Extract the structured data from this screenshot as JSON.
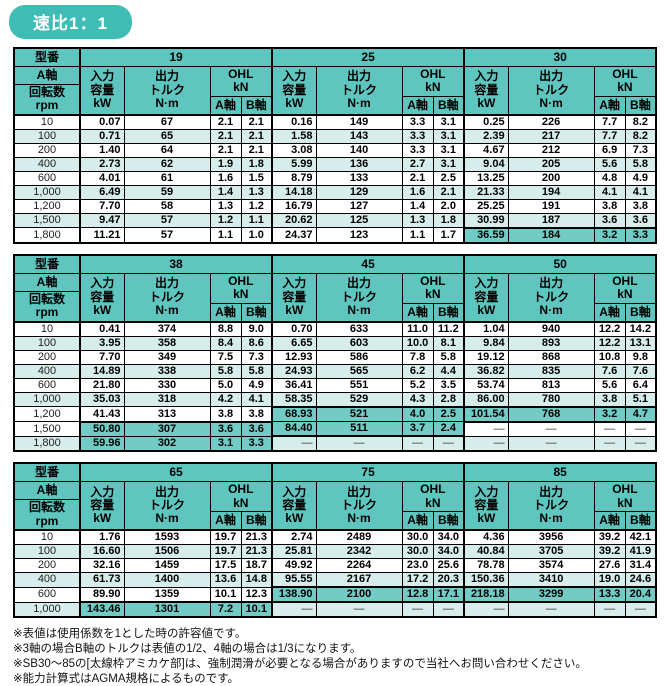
{
  "page_title": "速比1：1",
  "dash": "—",
  "colors": {
    "title_bg": "#3fbdb4",
    "header_teal": "#5ec6bf",
    "row_tint": "#d7edeb",
    "highlight_teal": "#72cbc4",
    "border": "#000000"
  },
  "header": {
    "model_label": "型番",
    "a_axis": "A軸",
    "b_axis": "B軸",
    "rpm_lines": [
      "回転数",
      "rpm"
    ],
    "input_lines": [
      "入力",
      "容量",
      "kW"
    ],
    "output_lines": [
      "出力",
      "トルク",
      "N·m"
    ],
    "ohl_lines": [
      "OHL",
      "kN"
    ]
  },
  "tables": [
    {
      "models": [
        "19",
        "25",
        "30"
      ],
      "rows": [
        {
          "rpm": "10",
          "tint": false,
          "hl": [
            false,
            false,
            false
          ],
          "cells": [
            [
              "0.07",
              "67",
              "2.1",
              "2.1"
            ],
            [
              "0.16",
              "149",
              "3.3",
              "3.1"
            ],
            [
              "0.25",
              "226",
              "7.7",
              "8.2"
            ]
          ]
        },
        {
          "rpm": "100",
          "tint": true,
          "hl": [
            false,
            false,
            false
          ],
          "cells": [
            [
              "0.71",
              "65",
              "2.1",
              "2.1"
            ],
            [
              "1.58",
              "143",
              "3.3",
              "3.1"
            ],
            [
              "2.39",
              "217",
              "7.7",
              "8.2"
            ]
          ]
        },
        {
          "rpm": "200",
          "tint": false,
          "hl": [
            false,
            false,
            false
          ],
          "cells": [
            [
              "1.40",
              "64",
              "2.1",
              "2.1"
            ],
            [
              "3.08",
              "140",
              "3.3",
              "3.1"
            ],
            [
              "4.67",
              "212",
              "6.9",
              "7.3"
            ]
          ]
        },
        {
          "rpm": "400",
          "tint": true,
          "hl": [
            false,
            false,
            false
          ],
          "cells": [
            [
              "2.73",
              "62",
              "1.9",
              "1.8"
            ],
            [
              "5.99",
              "136",
              "2.7",
              "3.1"
            ],
            [
              "9.04",
              "205",
              "5.6",
              "5.8"
            ]
          ]
        },
        {
          "rpm": "600",
          "tint": false,
          "hl": [
            false,
            false,
            false
          ],
          "cells": [
            [
              "4.01",
              "61",
              "1.6",
              "1.5"
            ],
            [
              "8.79",
              "133",
              "2.1",
              "2.5"
            ],
            [
              "13.25",
              "200",
              "4.8",
              "4.9"
            ]
          ]
        },
        {
          "rpm": "1,000",
          "tint": true,
          "hl": [
            false,
            false,
            false
          ],
          "cells": [
            [
              "6.49",
              "59",
              "1.4",
              "1.3"
            ],
            [
              "14.18",
              "129",
              "1.6",
              "2.1"
            ],
            [
              "21.33",
              "194",
              "4.1",
              "4.1"
            ]
          ]
        },
        {
          "rpm": "1,200",
          "tint": false,
          "hl": [
            false,
            false,
            false
          ],
          "cells": [
            [
              "7.70",
              "58",
              "1.3",
              "1.2"
            ],
            [
              "16.79",
              "127",
              "1.4",
              "2.0"
            ],
            [
              "25.25",
              "191",
              "3.8",
              "3.8"
            ]
          ]
        },
        {
          "rpm": "1,500",
          "tint": true,
          "hl": [
            false,
            false,
            false
          ],
          "cells": [
            [
              "9.47",
              "57",
              "1.2",
              "1.1"
            ],
            [
              "20.62",
              "125",
              "1.3",
              "1.8"
            ],
            [
              "30.99",
              "187",
              "3.6",
              "3.6"
            ]
          ]
        },
        {
          "rpm": "1,800",
          "tint": false,
          "hl": [
            false,
            false,
            true
          ],
          "cells": [
            [
              "11.21",
              "57",
              "1.1",
              "1.0"
            ],
            [
              "24.37",
              "123",
              "1.1",
              "1.7"
            ],
            [
              "36.59",
              "184",
              "3.2",
              "3.3"
            ]
          ]
        }
      ]
    },
    {
      "models": [
        "38",
        "45",
        "50"
      ],
      "rows": [
        {
          "rpm": "10",
          "tint": false,
          "hl": [
            false,
            false,
            false
          ],
          "cells": [
            [
              "0.41",
              "374",
              "8.8",
              "9.0"
            ],
            [
              "0.70",
              "633",
              "11.0",
              "11.2"
            ],
            [
              "1.04",
              "940",
              "12.2",
              "14.2"
            ]
          ]
        },
        {
          "rpm": "100",
          "tint": true,
          "hl": [
            false,
            false,
            false
          ],
          "cells": [
            [
              "3.95",
              "358",
              "8.4",
              "8.6"
            ],
            [
              "6.65",
              "603",
              "10.0",
              "8.1"
            ],
            [
              "9.84",
              "893",
              "12.2",
              "13.1"
            ]
          ]
        },
        {
          "rpm": "200",
          "tint": false,
          "hl": [
            false,
            false,
            false
          ],
          "cells": [
            [
              "7.70",
              "349",
              "7.5",
              "7.3"
            ],
            [
              "12.93",
              "586",
              "7.8",
              "5.8"
            ],
            [
              "19.12",
              "868",
              "10.8",
              "9.8"
            ]
          ]
        },
        {
          "rpm": "400",
          "tint": true,
          "hl": [
            false,
            false,
            false
          ],
          "cells": [
            [
              "14.89",
              "338",
              "5.8",
              "5.8"
            ],
            [
              "24.93",
              "565",
              "6.2",
              "4.4"
            ],
            [
              "36.82",
              "835",
              "7.6",
              "7.6"
            ]
          ]
        },
        {
          "rpm": "600",
          "tint": false,
          "hl": [
            false,
            false,
            false
          ],
          "cells": [
            [
              "21.80",
              "330",
              "5.0",
              "4.9"
            ],
            [
              "36.41",
              "551",
              "5.2",
              "3.5"
            ],
            [
              "53.74",
              "813",
              "5.6",
              "6.4"
            ]
          ]
        },
        {
          "rpm": "1,000",
          "tint": true,
          "hl": [
            false,
            false,
            false
          ],
          "cells": [
            [
              "35.03",
              "318",
              "4.2",
              "4.1"
            ],
            [
              "58.35",
              "529",
              "4.3",
              "2.8"
            ],
            [
              "86.00",
              "780",
              "3.8",
              "5.1"
            ]
          ]
        },
        {
          "rpm": "1,200",
          "tint": false,
          "hl": [
            false,
            true,
            true
          ],
          "cells": [
            [
              "41.43",
              "313",
              "3.8",
              "3.8"
            ],
            [
              "68.93",
              "521",
              "4.0",
              "2.5"
            ],
            [
              "101.54",
              "768",
              "3.2",
              "4.7"
            ]
          ]
        },
        {
          "rpm": "1,500",
          "tint": false,
          "hl": [
            true,
            true,
            false
          ],
          "cells": [
            [
              "50.80",
              "307",
              "3.6",
              "3.6"
            ],
            [
              "84.40",
              "511",
              "3.7",
              "2.4"
            ],
            [
              "—",
              "—",
              "—",
              "—"
            ]
          ]
        },
        {
          "rpm": "1,800",
          "tint": true,
          "hl": [
            true,
            false,
            false
          ],
          "cells": [
            [
              "59.96",
              "302",
              "3.1",
              "3.3"
            ],
            [
              "—",
              "—",
              "—",
              "—"
            ],
            [
              "—",
              "—",
              "—",
              "—"
            ]
          ]
        }
      ]
    },
    {
      "models": [
        "65",
        "75",
        "85"
      ],
      "rows": [
        {
          "rpm": "10",
          "tint": false,
          "hl": [
            false,
            false,
            false
          ],
          "cells": [
            [
              "1.76",
              "1593",
              "19.7",
              "21.3"
            ],
            [
              "2.74",
              "2489",
              "30.0",
              "34.0"
            ],
            [
              "4.36",
              "3956",
              "39.2",
              "42.1"
            ]
          ]
        },
        {
          "rpm": "100",
          "tint": true,
          "hl": [
            false,
            false,
            false
          ],
          "cells": [
            [
              "16.60",
              "1506",
              "19.7",
              "21.3"
            ],
            [
              "25.81",
              "2342",
              "30.0",
              "34.0"
            ],
            [
              "40.84",
              "3705",
              "39.2",
              "41.9"
            ]
          ]
        },
        {
          "rpm": "200",
          "tint": false,
          "hl": [
            false,
            false,
            false
          ],
          "cells": [
            [
              "32.16",
              "1459",
              "17.5",
              "18.7"
            ],
            [
              "49.92",
              "2264",
              "23.0",
              "25.6"
            ],
            [
              "78.78",
              "3574",
              "27.6",
              "31.4"
            ]
          ]
        },
        {
          "rpm": "400",
          "tint": true,
          "hl": [
            false,
            false,
            false
          ],
          "cells": [
            [
              "61.73",
              "1400",
              "13.6",
              "14.8"
            ],
            [
              "95.55",
              "2167",
              "17.2",
              "20.3"
            ],
            [
              "150.36",
              "3410",
              "19.0",
              "24.6"
            ]
          ]
        },
        {
          "rpm": "600",
          "tint": false,
          "hl": [
            false,
            true,
            true
          ],
          "cells": [
            [
              "89.90",
              "1359",
              "10.1",
              "12.3"
            ],
            [
              "138.90",
              "2100",
              "12.8",
              "17.1"
            ],
            [
              "218.18",
              "3299",
              "13.3",
              "20.4"
            ]
          ]
        },
        {
          "rpm": "1,000",
          "tint": true,
          "hl": [
            true,
            false,
            false
          ],
          "cells": [
            [
              "143.46",
              "1301",
              "7.2",
              "10.1"
            ],
            [
              "—",
              "—",
              "—",
              "—"
            ],
            [
              "—",
              "—",
              "—",
              "—"
            ]
          ]
        }
      ]
    }
  ],
  "footnotes": [
    "※表値は使用係数を1とした時の許容値です。",
    "※3軸の場合B軸のトルクは表値の1/2、4軸の場合は1/3になります。",
    "※SB30～85の[太線枠アミカケ部]は、強制潤滑が必要となる場合がありますので当社へお問い合わせください。",
    "※能力計算式はAGMA規格によるものです。"
  ]
}
